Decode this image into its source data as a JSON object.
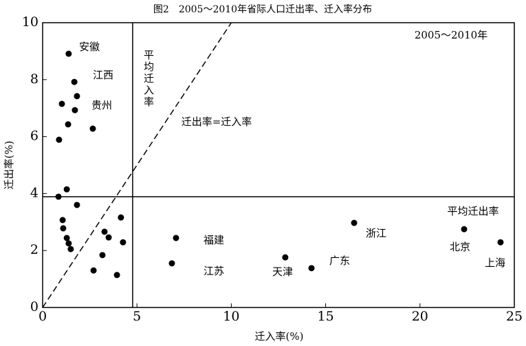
{
  "chart_data": {
    "type": "scatter",
    "title": "图2　2005～2010年省际人口迁出率、迁入率分布",
    "x_label": "迁入率(%)",
    "y_label": "迁出率(%)",
    "x": [
      1.38,
      1.68,
      1.82,
      1.02,
      1.71,
      1.35,
      2.66,
      0.87,
      1.28,
      0.84,
      1.82,
      1.06,
      1.09,
      1.28,
      1.38,
      1.49,
      4.15,
      3.28,
      3.5,
      4.26,
      3.17,
      2.7,
      3.94,
      7.07,
      6.85,
      12.86,
      14.25,
      16.51,
      22.34,
      24.27
    ],
    "values": [
      8.91,
      7.92,
      7.42,
      7.15,
      6.93,
      6.43,
      6.28,
      5.89,
      4.15,
      3.89,
      3.6,
      3.07,
      2.78,
      2.44,
      2.25,
      2.05,
      3.16,
      2.66,
      2.46,
      2.29,
      1.84,
      1.3,
      1.14,
      2.44,
      1.55,
      1.76,
      1.38,
      2.97,
      2.75,
      2.29
    ],
    "color": "#000000",
    "xlim": [
      0,
      25
    ],
    "xticks": [
      0,
      5,
      10,
      15,
      20,
      25
    ],
    "ylim": [
      0,
      10
    ],
    "yticks": [
      0,
      2,
      4,
      6,
      8,
      10
    ],
    "reference_lines": {
      "x": 4.77,
      "y": 3.89
    },
    "annotations": [
      "安徽",
      "江西",
      "贵州",
      "福建",
      "江苏",
      "天津",
      "广东",
      "浙江",
      "北京",
      "上海",
      "平均迁出率",
      "迁出率=迁入率",
      "2005～2010年",
      "平均迁入率"
    ]
  }
}
